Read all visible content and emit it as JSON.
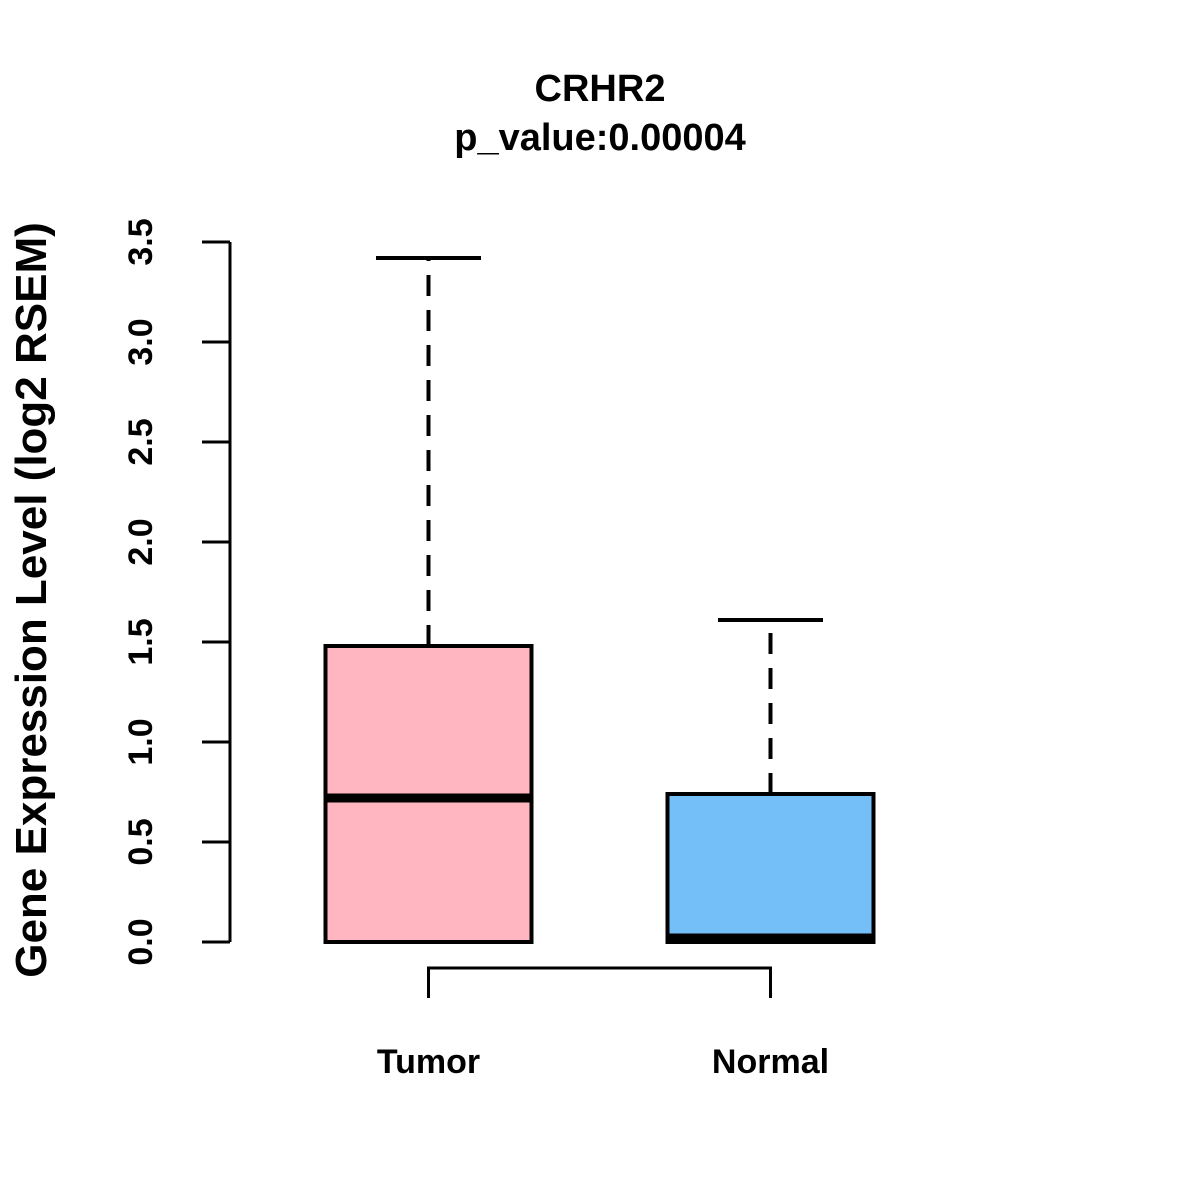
{
  "title": "CRHR2",
  "subtitle": "p_value:0.00004",
  "chart_data": {
    "type": "boxplot",
    "title": "CRHR2",
    "subtitle": "p_value:0.00004",
    "ylabel": "Gene Expression Level (log2 RSEM)",
    "xlabel": "",
    "ylim": [
      0.0,
      3.5
    ],
    "yticks": [
      "0.0",
      "0.5",
      "1.0",
      "1.5",
      "2.0",
      "2.5",
      "3.0",
      "3.5"
    ],
    "grid": "off",
    "categories": [
      "Tumor",
      "Normal"
    ],
    "series": [
      {
        "name": "Tumor",
        "color": "#FFB6C1",
        "whisker_low": 0.0,
        "q1": 0.0,
        "median": 0.72,
        "q3": 1.48,
        "whisker_high": 3.42
      },
      {
        "name": "Normal",
        "color": "#74BFF7",
        "whisker_low": 0.0,
        "q1": 0.0,
        "median": 0.02,
        "q3": 0.74,
        "whisker_high": 1.61
      }
    ],
    "comparison_bracket": {
      "from": "Tumor",
      "to": "Normal"
    },
    "colors": {
      "axis": "#000000",
      "box_border": "#000000",
      "median": "#000000",
      "background": "#ffffff"
    }
  }
}
